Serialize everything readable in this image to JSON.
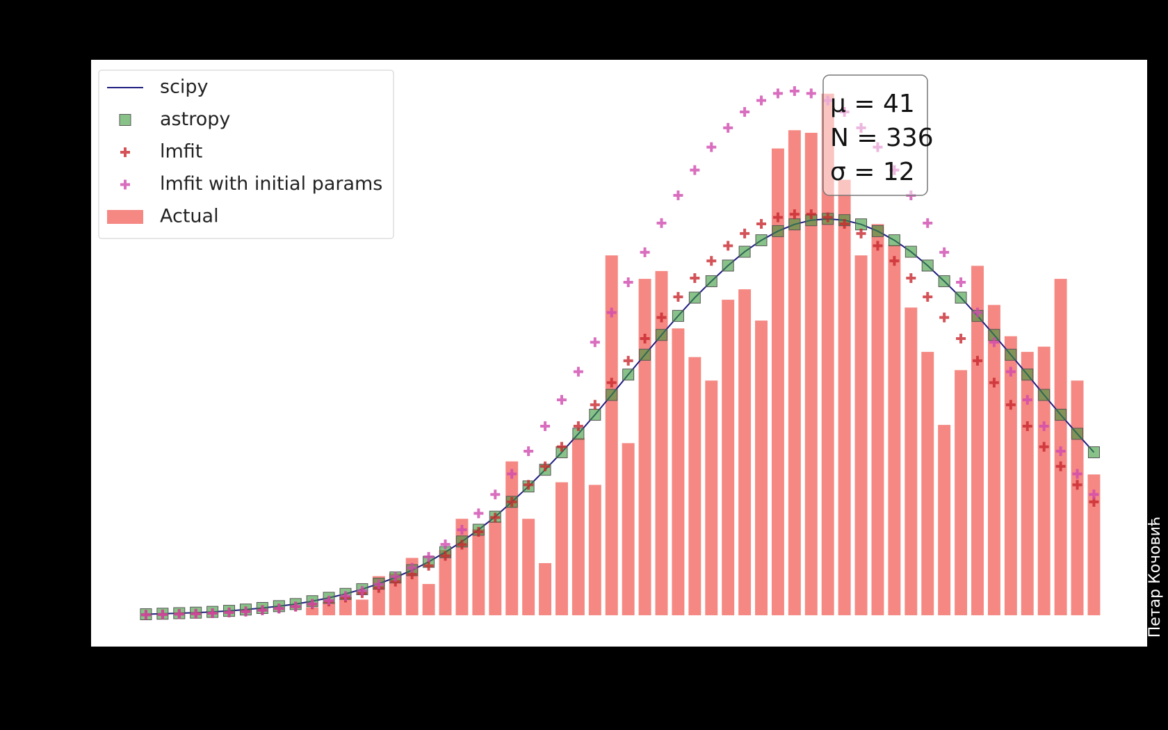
{
  "chart_data": {
    "type": "bar",
    "x": [
      0,
      1,
      2,
      3,
      4,
      5,
      6,
      7,
      8,
      9,
      10,
      11,
      12,
      13,
      14,
      15,
      16,
      17,
      18,
      19,
      20,
      21,
      22,
      23,
      24,
      25,
      26,
      27,
      28,
      29,
      30,
      31,
      32,
      33,
      34,
      35,
      36,
      37,
      38,
      39,
      40,
      41,
      42,
      43,
      44,
      45,
      46,
      47,
      48,
      49,
      50,
      51,
      52,
      53,
      54,
      55,
      56,
      57
    ],
    "xlim": [
      -3.3,
      60.2
    ],
    "ylim": [
      -1.2,
      21.3
    ],
    "grid": false,
    "legend": "upper left",
    "annotation": [
      "μ = 41",
      "N = 336",
      "σ = 12"
    ],
    "watermark": "Петар Кочовић",
    "series": [
      {
        "name": "scipy",
        "type": "line",
        "color": "#1c1c80",
        "values": [
          0.04,
          0.06,
          0.08,
          0.1,
          0.13,
          0.17,
          0.22,
          0.28,
          0.35,
          0.43,
          0.54,
          0.67,
          0.82,
          1.0,
          1.21,
          1.45,
          1.73,
          2.05,
          2.42,
          2.83,
          3.28,
          3.78,
          4.35,
          4.94,
          5.58,
          6.25,
          6.96,
          7.69,
          8.45,
          9.23,
          9.99,
          10.75,
          11.48,
          12.18,
          12.81,
          13.41,
          13.94,
          14.38,
          14.73,
          14.99,
          15.15,
          15.2,
          15.15,
          14.99,
          14.73,
          14.38,
          13.94,
          13.41,
          12.81,
          12.18,
          11.48,
          10.75,
          9.99,
          9.23,
          8.45,
          7.69,
          6.96,
          6.25
        ]
      },
      {
        "name": "astropy",
        "type": "square",
        "color": "#3a9a3a",
        "values": [
          0.04,
          0.06,
          0.08,
          0.1,
          0.13,
          0.17,
          0.22,
          0.28,
          0.35,
          0.43,
          0.54,
          0.67,
          0.82,
          1.0,
          1.21,
          1.45,
          1.73,
          2.05,
          2.42,
          2.83,
          3.28,
          3.78,
          4.35,
          4.94,
          5.58,
          6.25,
          6.96,
          7.69,
          8.45,
          9.23,
          9.99,
          10.75,
          11.48,
          12.18,
          12.81,
          13.41,
          13.94,
          14.38,
          14.73,
          14.99,
          15.15,
          15.2,
          15.15,
          14.99,
          14.73,
          14.38,
          13.94,
          13.41,
          12.81,
          12.18,
          11.48,
          10.75,
          9.99,
          9.23,
          8.45,
          7.69,
          6.96,
          6.25
        ]
      },
      {
        "name": "lmfit",
        "type": "plus",
        "color": "#c8282e",
        "values": [
          0.02,
          0.03,
          0.05,
          0.06,
          0.08,
          0.11,
          0.15,
          0.2,
          0.26,
          0.33,
          0.42,
          0.53,
          0.68,
          0.85,
          1.05,
          1.29,
          1.57,
          1.9,
          2.28,
          2.71,
          3.2,
          3.75,
          4.35,
          5.0,
          5.71,
          6.46,
          7.25,
          8.07,
          8.92,
          9.76,
          10.61,
          11.42,
          12.21,
          12.93,
          13.59,
          14.17,
          14.64,
          15.01,
          15.26,
          15.38,
          15.38,
          15.26,
          15.01,
          14.64,
          14.17,
          13.59,
          12.93,
          12.21,
          11.42,
          10.61,
          9.76,
          8.92,
          8.07,
          7.25,
          6.46,
          5.71,
          5.0,
          4.35
        ]
      },
      {
        "name": "lmfit with initial params",
        "type": "plus",
        "color": "#d04aaf",
        "values": [
          0.02,
          0.03,
          0.04,
          0.06,
          0.08,
          0.11,
          0.14,
          0.19,
          0.26,
          0.34,
          0.44,
          0.57,
          0.74,
          0.94,
          1.19,
          1.48,
          1.82,
          2.24,
          2.72,
          3.28,
          3.91,
          4.63,
          5.42,
          6.29,
          7.25,
          8.26,
          9.34,
          10.47,
          11.61,
          12.77,
          13.92,
          15.04,
          16.1,
          17.07,
          17.95,
          18.69,
          19.3,
          19.74,
          20.01,
          20.1,
          20.01,
          19.74,
          19.3,
          18.69,
          17.95,
          17.07,
          16.1,
          15.04,
          13.92,
          12.77,
          11.61,
          10.47,
          9.34,
          8.26,
          7.25,
          6.29,
          5.42,
          4.63
        ]
      },
      {
        "name": "Actual",
        "type": "bar",
        "color": "#f47b76",
        "values": [
          0,
          0,
          0,
          0,
          0,
          0,
          0,
          0,
          0,
          0,
          0.3,
          0.5,
          0.7,
          0.6,
          1.5,
          1.6,
          2.2,
          1.2,
          2.5,
          3.7,
          3.3,
          3.6,
          5.9,
          3.7,
          2.0,
          5.1,
          6.8,
          5.0,
          13.8,
          6.6,
          12.9,
          13.2,
          11.0,
          9.9,
          9.0,
          12.1,
          12.5,
          11.3,
          17.9,
          18.6,
          18.5,
          20.0,
          16.7,
          13.8,
          15.0,
          14.2,
          11.8,
          10.1,
          7.3,
          9.4,
          13.4,
          11.9,
          10.7,
          10.1,
          10.3,
          12.9,
          9.0,
          5.4
        ]
      }
    ]
  }
}
